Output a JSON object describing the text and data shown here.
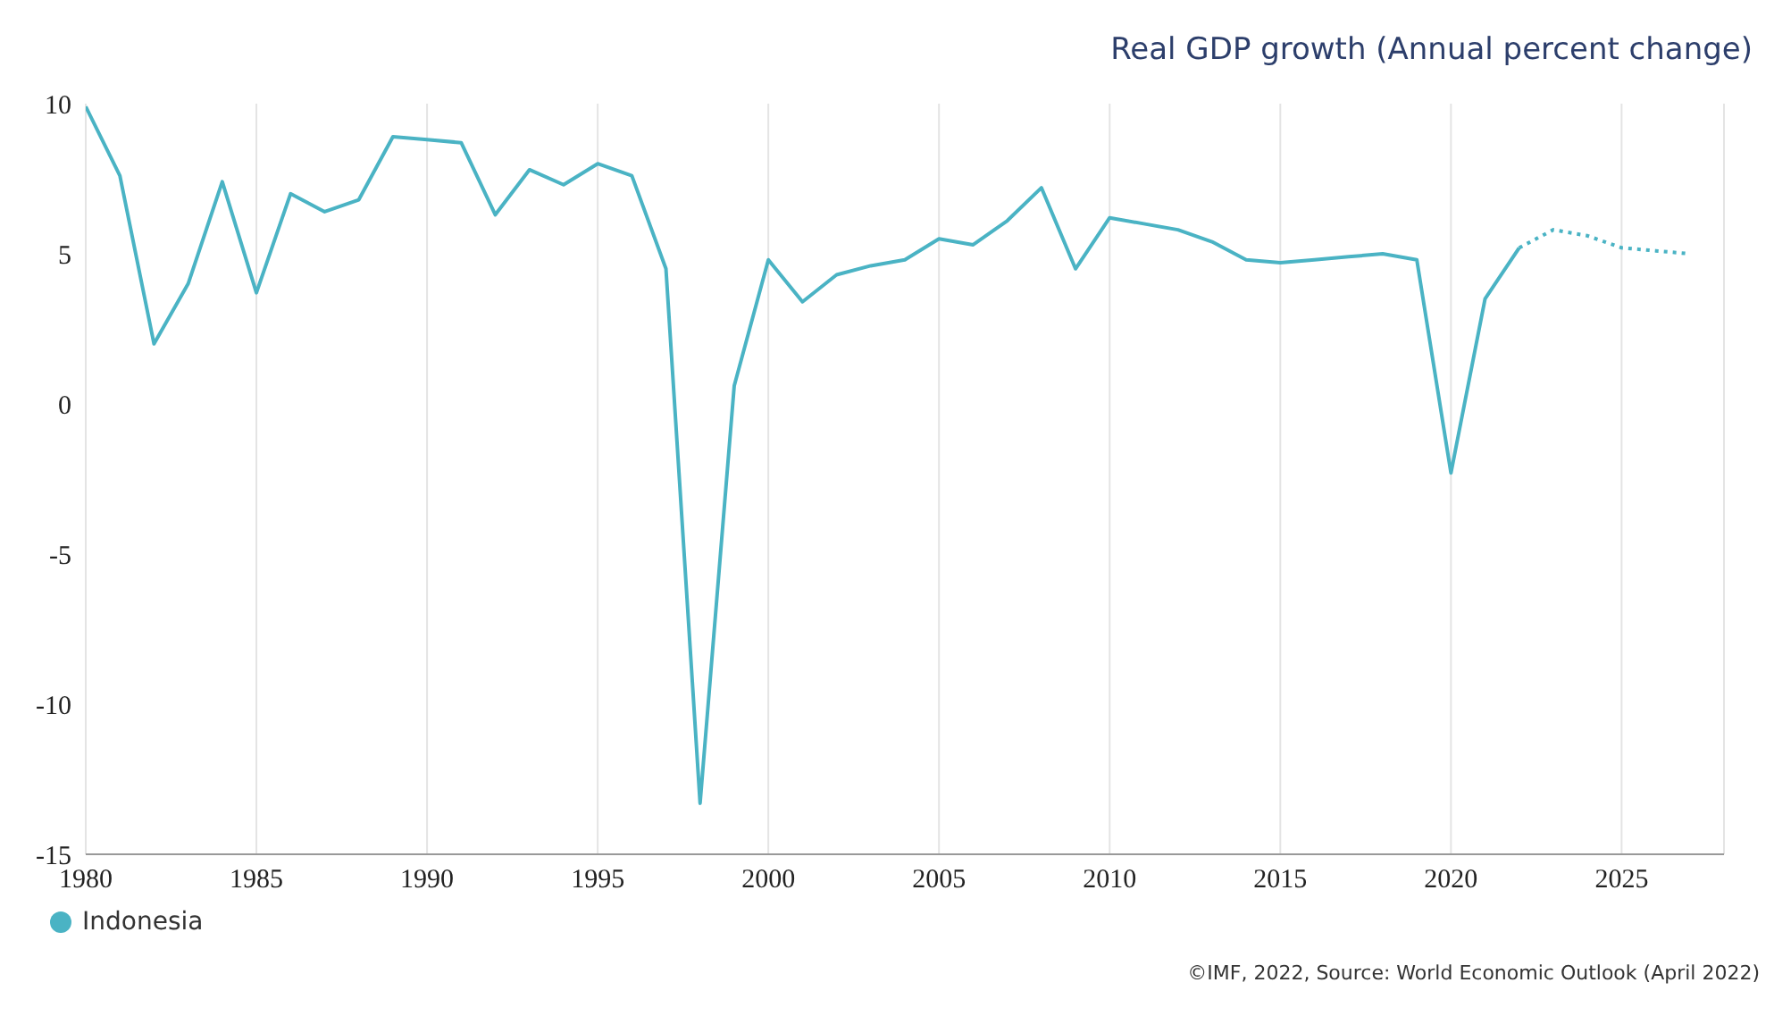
{
  "chart_data": {
    "type": "line",
    "title": "Real GDP growth (Annual percent change)",
    "series": [
      {
        "name": "Indonesia",
        "color": "#4ab3c4",
        "line_style": "solid",
        "x": [
          1980,
          1981,
          1982,
          1983,
          1984,
          1985,
          1986,
          1987,
          1988,
          1989,
          1990,
          1991,
          1992,
          1993,
          1994,
          1995,
          1996,
          1997,
          1998,
          1999,
          2000,
          2001,
          2002,
          2003,
          2004,
          2005,
          2006,
          2007,
          2008,
          2009,
          2010,
          2011,
          2012,
          2013,
          2014,
          2015,
          2016,
          2017,
          2018,
          2019,
          2020,
          2021,
          2022
        ],
        "values": [
          9.9,
          7.6,
          2.0,
          4.0,
          7.4,
          3.7,
          7.0,
          6.4,
          6.8,
          8.9,
          8.8,
          8.7,
          6.3,
          7.8,
          7.3,
          8.0,
          7.6,
          4.5,
          -13.3,
          0.6,
          4.8,
          3.4,
          4.3,
          4.6,
          4.8,
          5.5,
          5.3,
          6.1,
          7.2,
          4.5,
          6.2,
          6.0,
          5.8,
          5.4,
          4.8,
          4.7,
          4.8,
          4.9,
          5.0,
          4.8,
          -2.3,
          3.5,
          5.2
        ]
      },
      {
        "color": "#4ab3c4",
        "line_style": "dotted",
        "x": [
          2022,
          2023,
          2024,
          2025,
          2026,
          2027
        ],
        "values": [
          5.2,
          5.8,
          5.6,
          5.2,
          5.1,
          5.0
        ]
      }
    ],
    "xlim": [
      1980,
      2028
    ],
    "xticks": [
      1980,
      1985,
      1990,
      1995,
      2000,
      2005,
      2010,
      2015,
      2020,
      2025
    ],
    "ylim": [
      -15,
      10
    ],
    "yticks": [
      -15,
      -10,
      -5,
      0,
      5,
      10
    ],
    "grid": "x",
    "legend": "bottom left",
    "marker": "none",
    "annotations": [
      "©IMF, 2022, Source: World Economic Outlook (April 2022)"
    ]
  }
}
